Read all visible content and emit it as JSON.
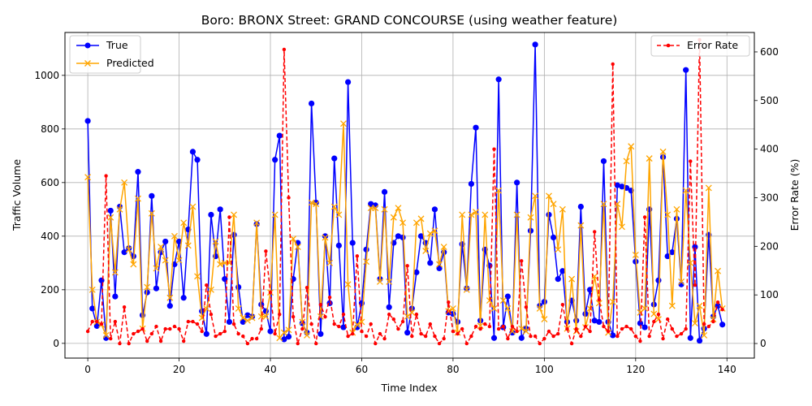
{
  "chart_data": {
    "type": "line",
    "title": "Boro: BRONX Street: GRAND CONCOURSE (using weather feature)",
    "xlabel": "Time Index",
    "ylabel": "Traffic Volume",
    "ylabel_right": "Error Rate (%)",
    "xlim": [
      -5,
      146
    ],
    "ylim": [
      -55,
      1160
    ],
    "ylim_right": [
      -30,
      640
    ],
    "xticks": [
      0,
      20,
      40,
      60,
      80,
      100,
      120,
      140
    ],
    "yticks": [
      0,
      200,
      400,
      600,
      800,
      1000
    ],
    "yticks_right": [
      0,
      100,
      200,
      300,
      400,
      500,
      600
    ],
    "grid": true,
    "legend_left": "upper-left",
    "legend_right": "upper-right",
    "x": [
      0,
      1,
      2,
      3,
      4,
      5,
      6,
      7,
      8,
      9,
      10,
      11,
      12,
      13,
      14,
      15,
      16,
      17,
      18,
      19,
      20,
      21,
      22,
      23,
      24,
      25,
      26,
      27,
      28,
      29,
      30,
      31,
      32,
      33,
      34,
      35,
      36,
      37,
      38,
      39,
      40,
      41,
      42,
      43,
      44,
      45,
      46,
      47,
      48,
      49,
      50,
      51,
      52,
      53,
      54,
      55,
      56,
      57,
      58,
      59,
      60,
      61,
      62,
      63,
      64,
      65,
      66,
      67,
      68,
      69,
      70,
      71,
      72,
      73,
      74,
      75,
      76,
      77,
      78,
      79,
      80,
      81,
      82,
      83,
      84,
      85,
      86,
      87,
      88,
      89,
      90,
      91,
      92,
      93,
      94,
      95,
      96,
      97,
      98,
      99,
      100,
      101,
      102,
      103,
      104,
      105,
      106,
      107,
      108,
      109,
      110,
      111,
      112,
      113,
      114,
      115,
      116,
      117,
      118,
      119,
      120,
      121,
      122,
      123,
      124,
      125,
      126,
      127,
      128,
      129,
      130,
      131,
      132,
      133,
      134,
      135,
      136,
      137,
      138,
      139
    ],
    "series": [
      {
        "name": "True",
        "axis": "left",
        "color": "#0000ff",
        "marker": "circle",
        "values": [
          830,
          130,
          65,
          235,
          20,
          495,
          175,
          510,
          340,
          355,
          325,
          640,
          105,
          190,
          550,
          205,
          340,
          380,
          140,
          295,
          380,
          170,
          425,
          715,
          685,
          120,
          35,
          480,
          325,
          500,
          240,
          80,
          405,
          210,
          80,
          105,
          100,
          445,
          145,
          120,
          45,
          685,
          775,
          15,
          25,
          240,
          375,
          75,
          40,
          895,
          525,
          35,
          400,
          150,
          690,
          365,
          60,
          975,
          375,
          60,
          150,
          350,
          520,
          515,
          240,
          565,
          135,
          375,
          400,
          395,
          40,
          130,
          265,
          400,
          375,
          300,
          500,
          280,
          340,
          115,
          110,
          80,
          370,
          205,
          595,
          805,
          85,
          350,
          290,
          20,
          985,
          60,
          175,
          40,
          600,
          20,
          55,
          420,
          1115,
          140,
          155,
          480,
          395,
          240,
          270,
          80,
          160,
          85,
          510,
          110,
          200,
          85,
          80,
          680,
          80,
          30,
          590,
          585,
          580,
          570,
          305,
          75,
          60,
          500,
          145,
          235,
          695,
          325,
          340,
          465,
          220,
          1020,
          20,
          360,
          10,
          55,
          405,
          100,
          140,
          70
        ]
      },
      {
        "name": "Predicted",
        "axis": "left",
        "color": "#ffa500",
        "marker": "x",
        "values": [
          620,
          200,
          80,
          70,
          30,
          470,
          265,
          500,
          600,
          350,
          295,
          540,
          55,
          210,
          485,
          280,
          360,
          310,
          170,
          400,
          310,
          450,
          365,
          510,
          250,
          95,
          130,
          200,
          380,
          295,
          300,
          300,
          480,
          130,
          95,
          85,
          95,
          450,
          100,
          100,
          190,
          480,
          20,
          40,
          50,
          390,
          360,
          80,
          30,
          525,
          520,
          100,
          395,
          300,
          510,
          480,
          820,
          220,
          40,
          70,
          80,
          305,
          505,
          505,
          230,
          500,
          230,
          470,
          505,
          450,
          100,
          115,
          450,
          465,
          345,
          410,
          420,
          295,
          360,
          120,
          130,
          40,
          480,
          200,
          480,
          490,
          65,
          480,
          160,
          130,
          570,
          160,
          130,
          45,
          480,
          55,
          45,
          470,
          550,
          130,
          90,
          550,
          520,
          350,
          500,
          55,
          240,
          45,
          440,
          60,
          130,
          250,
          150,
          520,
          40,
          155,
          520,
          435,
          680,
          735,
          330,
          115,
          130,
          690,
          110,
          90,
          715,
          480,
          140,
          500,
          230,
          570,
          300,
          75,
          140,
          30,
          580,
          90,
          270,
          130
        ]
      },
      {
        "name": "Error Rate",
        "axis": "right",
        "color": "#ff0000",
        "marker": "dot",
        "dashed": true,
        "values": [
          25,
          45,
          45,
          40,
          345,
          10,
          45,
          0,
          75,
          0,
          20,
          25,
          30,
          5,
          20,
          35,
          5,
          30,
          30,
          35,
          30,
          5,
          45,
          45,
          40,
          25,
          120,
          60,
          15,
          20,
          25,
          260,
          40,
          20,
          15,
          0,
          10,
          10,
          30,
          190,
          105,
          20,
          60,
          605,
          300,
          55,
          0,
          30,
          115,
          40,
          0,
          80,
          55,
          95,
          40,
          35,
          60,
          15,
          20,
          180,
          25,
          15,
          40,
          0,
          20,
          10,
          60,
          50,
          30,
          45,
          160,
          15,
          60,
          20,
          15,
          40,
          15,
          0,
          10,
          85,
          25,
          20,
          30,
          0,
          15,
          35,
          30,
          40,
          35,
          400,
          30,
          35,
          10,
          35,
          25,
          170,
          75,
          15,
          15,
          0,
          10,
          25,
          15,
          20,
          80,
          30,
          0,
          30,
          15,
          35,
          25,
          230,
          90,
          35,
          25,
          575,
          15,
          30,
          35,
          30,
          15,
          5,
          260,
          15,
          45,
          60,
          10,
          50,
          30,
          15,
          20,
          30,
          375,
          120,
          625,
          40,
          35,
          45,
          85,
          70
        ]
      }
    ]
  }
}
